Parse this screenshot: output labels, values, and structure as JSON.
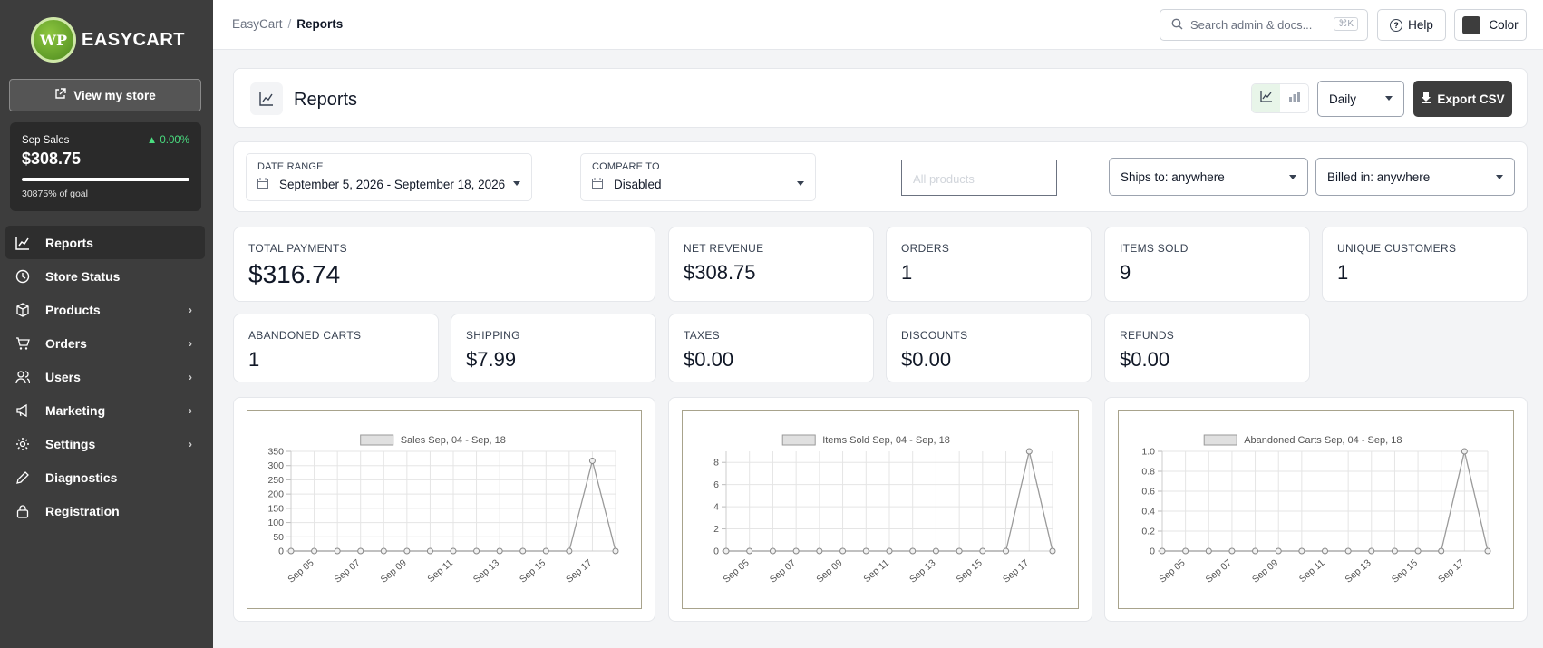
{
  "app": {
    "logo_mark": "WP",
    "name": "EASYCART"
  },
  "sidebar": {
    "view_store": "View my store",
    "sales": {
      "label": "Sep Sales",
      "change": "▲ 0.00%",
      "amount": "$308.75",
      "goal": "30875% of goal",
      "goal_progress": 1.0
    },
    "items": [
      {
        "label": "Reports",
        "icon": "chart-line-icon",
        "active": true,
        "chevron": false
      },
      {
        "label": "Store Status",
        "icon": "clock-icon",
        "active": false,
        "chevron": false
      },
      {
        "label": "Products",
        "icon": "box-icon",
        "active": false,
        "chevron": true
      },
      {
        "label": "Orders",
        "icon": "cart-icon",
        "active": false,
        "chevron": true
      },
      {
        "label": "Users",
        "icon": "users-icon",
        "active": false,
        "chevron": true
      },
      {
        "label": "Marketing",
        "icon": "megaphone-icon",
        "active": false,
        "chevron": true
      },
      {
        "label": "Settings",
        "icon": "gear-icon",
        "active": false,
        "chevron": true
      },
      {
        "label": "Diagnostics",
        "icon": "pencil-icon",
        "active": false,
        "chevron": false
      },
      {
        "label": "Registration",
        "icon": "lock-icon",
        "active": false,
        "chevron": false
      }
    ]
  },
  "topbar": {
    "breadcrumb": [
      "EasyCart",
      "Reports"
    ],
    "search_placeholder": "Search admin & docs...",
    "search_shortcut": "⌘K",
    "help": "Help",
    "color": "Color"
  },
  "report": {
    "title": "Reports",
    "period": "Daily",
    "export": "Export CSV"
  },
  "filters": {
    "date_range_label": "DATE RANGE",
    "date_range_value": "September 5, 2026 - September 18, 2026",
    "compare_label": "COMPARE TO",
    "compare_value": "Disabled",
    "products_placeholder": "All products",
    "ships_to": "Ships to: anywhere",
    "billed_in": "Billed in: anywhere"
  },
  "stats": {
    "total_payments": {
      "label": "TOTAL PAYMENTS",
      "value": "$316.74"
    },
    "net_revenue": {
      "label": "NET REVENUE",
      "value": "$308.75"
    },
    "orders": {
      "label": "ORDERS",
      "value": "1"
    },
    "items_sold": {
      "label": "ITEMS SOLD",
      "value": "9"
    },
    "unique_customers": {
      "label": "UNIQUE CUSTOMERS",
      "value": "1"
    },
    "abandoned_carts": {
      "label": "ABANDONED CARTS",
      "value": "1"
    },
    "shipping": {
      "label": "SHIPPING",
      "value": "$7.99"
    },
    "taxes": {
      "label": "TAXES",
      "value": "$0.00"
    },
    "discounts": {
      "label": "DISCOUNTS",
      "value": "$0.00"
    },
    "refunds": {
      "label": "REFUNDS",
      "value": "$0.00"
    }
  },
  "colors": {
    "sidebar_bg": "#3d3d3d",
    "accent_green": "#4ade80",
    "chart_line": "#9a9a9a"
  },
  "chart_data": [
    {
      "type": "line",
      "series": [
        {
          "name": "Sales Sep, 04 - Sep, 18",
          "values": [
            0,
            0,
            0,
            0,
            0,
            0,
            0,
            0,
            0,
            0,
            0,
            0,
            0,
            316.74,
            0
          ]
        }
      ],
      "x": [
        "Sep 04",
        "Sep 05",
        "Sep 06",
        "Sep 07",
        "Sep 08",
        "Sep 09",
        "Sep 10",
        "Sep 11",
        "Sep 12",
        "Sep 13",
        "Sep 14",
        "Sep 15",
        "Sep 16",
        "Sep 17",
        "Sep 18"
      ],
      "xtick_labels": [
        "Sep 05",
        "Sep 07",
        "Sep 09",
        "Sep 11",
        "Sep 13",
        "Sep 15",
        "Sep 17"
      ],
      "ylim": [
        0,
        350
      ],
      "yticks": [
        "0",
        "50",
        "100",
        "150",
        "200",
        "250",
        "300",
        "350"
      ],
      "grid": true,
      "legend": "top-center"
    },
    {
      "type": "line",
      "series": [
        {
          "name": "Items Sold Sep, 04 - Sep, 18",
          "values": [
            0,
            0,
            0,
            0,
            0,
            0,
            0,
            0,
            0,
            0,
            0,
            0,
            0,
            9,
            0
          ]
        }
      ],
      "x": [
        "Sep 04",
        "Sep 05",
        "Sep 06",
        "Sep 07",
        "Sep 08",
        "Sep 09",
        "Sep 10",
        "Sep 11",
        "Sep 12",
        "Sep 13",
        "Sep 14",
        "Sep 15",
        "Sep 16",
        "Sep 17",
        "Sep 18"
      ],
      "xtick_labels": [
        "Sep 05",
        "Sep 07",
        "Sep 09",
        "Sep 11",
        "Sep 13",
        "Sep 15",
        "Sep 17"
      ],
      "ylim": [
        0,
        9
      ],
      "yticks": [
        "0",
        "2",
        "4",
        "6",
        "8"
      ],
      "grid": true,
      "legend": "top-center"
    },
    {
      "type": "line",
      "series": [
        {
          "name": "Abandoned Carts Sep, 04 - Sep, 18",
          "values": [
            0,
            0,
            0,
            0,
            0,
            0,
            0,
            0,
            0,
            0,
            0,
            0,
            0,
            1,
            0
          ]
        }
      ],
      "x": [
        "Sep 04",
        "Sep 05",
        "Sep 06",
        "Sep 07",
        "Sep 08",
        "Sep 09",
        "Sep 10",
        "Sep 11",
        "Sep 12",
        "Sep 13",
        "Sep 14",
        "Sep 15",
        "Sep 16",
        "Sep 17",
        "Sep 18"
      ],
      "xtick_labels": [
        "Sep 05",
        "Sep 07",
        "Sep 09",
        "Sep 11",
        "Sep 13",
        "Sep 15",
        "Sep 17"
      ],
      "ylim": [
        0,
        1
      ],
      "yticks": [
        "0",
        "0.2",
        "0.4",
        "0.6",
        "0.8",
        "1.0"
      ],
      "grid": true,
      "legend": "top-center"
    }
  ]
}
